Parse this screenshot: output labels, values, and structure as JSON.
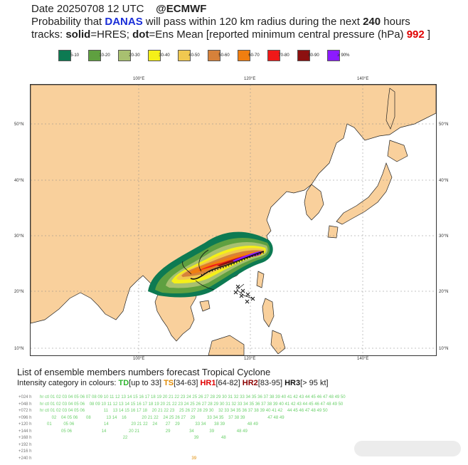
{
  "header": {
    "line1": {
      "date": "Date 20250708 12 UTC",
      "source": "@ECMWF"
    },
    "line2": {
      "pre": "Probability that ",
      "storm": "DANAS",
      "mid": " will pass within 120 km radius during the next ",
      "hours": "240",
      "post": " hours"
    },
    "line3": {
      "pre": "tracks: ",
      "solid": "solid",
      "eq1": "=HRES; ",
      "dot": "dot",
      "eq2": "=Ens Mean [reported minimum central pressure (hPa) ",
      "pressure": "992",
      "close": " ]"
    }
  },
  "legend": [
    {
      "label": "5-10",
      "color": "#0d7a52"
    },
    {
      "label": "10-20",
      "color": "#5fa040"
    },
    {
      "label": "20-30",
      "color": "#a8c070"
    },
    {
      "label": "30-40",
      "color": "#f5f018"
    },
    {
      "label": "40-50",
      "color": "#f0c850"
    },
    {
      "label": "50-60",
      "color": "#d6813a"
    },
    {
      "label": "60-70",
      "color": "#f07e10"
    },
    {
      "label": "70-80",
      "color": "#f01818"
    },
    {
      "label": "80-90",
      "color": "#8c1010"
    },
    {
      "label": "≥ 90%",
      "color": "#8c1aff"
    }
  ],
  "map": {
    "land_color": "#f9d09c",
    "sea_color": "#ffffff",
    "lon_labels": [
      "100°E",
      "120°E",
      "140°E"
    ],
    "lat_labels": [
      "50°N",
      "40°N",
      "30°N",
      "20°N",
      "10°N"
    ]
  },
  "ensemble": {
    "title": "List of ensemble members numbers forecast Tropical Cyclone",
    "cat_intro": "Intensity category in colours: ",
    "td": "TD",
    "td_range": "[up to 33]",
    "ts": "TS",
    "ts_range": "[34-63]",
    "hr1": "HR1",
    "hr1_range": "[64-82]",
    "hr2": "HR2",
    "hr2_range": "[83-95]",
    "hr3": "HR3",
    "hr3_range": "[> 95 kt]",
    "rows": [
      {
        "label": "+024 h",
        "text": "hr ctl 01 02 03 04 05 06 07 08 09 10 11 12 13 14 15 16 17 18 19 20 21 22 23 24 25 26 27 28 29 30 31 32 33 34 35 36 37 38 39 40 41 42 43 44 45 46 47 48 49 50"
      },
      {
        "label": "+048 h",
        "text": "hr ctl 01 02 03 04 05 06    08 09 10 11 12 13 14 15 16 17 18 19 20 21 22 23 24 25 26 27 28 29 30 31 32 33 34 35 36 37 38 39 40 41 42 43 44 45 46 47 48 49 50"
      },
      {
        "label": "+072 h",
        "text": "hr ctl 01 02 03 04 05 06                11    13 14 15 16 17 18    20 21 22 23    25 26 27 28 29 30    32 33 34 35 36 37 38 39 40 41 42    44 45 46 47 48 49 50"
      },
      {
        "label": "+096 h",
        "text": "          02    04 05 06       08             13 14    16             20 21 22    24 25 26 27    29          33 34 35    37 38 39                   47 48 49"
      },
      {
        "label": "+120 h",
        "text": "      01          05 06                         14                   20 21 22    24       27    29             33 34       38 39                   48 49"
      },
      {
        "label": "+144 h",
        "text": "                  05 06                         14                   20 21                      29                34             39                   48 49"
      },
      {
        "label": "+168 h",
        "text": "                                                                      22                                                        39                   48"
      },
      {
        "label": "+192 h",
        "text": ""
      },
      {
        "label": "+216 h",
        "text": ""
      },
      {
        "label": "+240 h",
        "text": "                                                                                                                                39"
      }
    ]
  }
}
